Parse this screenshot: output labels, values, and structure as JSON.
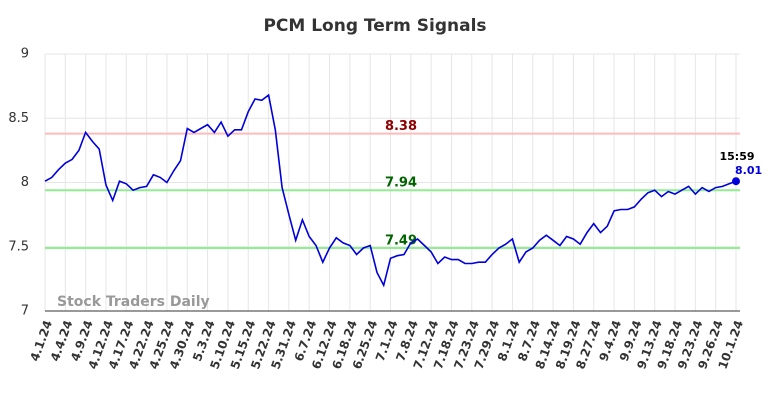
{
  "chart_data": {
    "type": "line",
    "title": "PCM Long Term Signals",
    "watermark": "Stock Traders Daily",
    "categories": [
      "4.1.24",
      null,
      null,
      "4.4.24",
      null,
      null,
      "4.9.24",
      null,
      null,
      "4.12.24",
      null,
      null,
      "4.17.24",
      null,
      null,
      "4.22.24",
      null,
      null,
      "4.25.24",
      null,
      null,
      "4.30.24",
      null,
      null,
      "5.3.24",
      null,
      null,
      "5.10.24",
      null,
      null,
      "5.15.24",
      null,
      null,
      "5.22.24",
      null,
      null,
      "5.31.24",
      null,
      null,
      "6.7.24",
      null,
      null,
      "6.12.24",
      null,
      null,
      "6.18.24",
      null,
      null,
      "6.25.24",
      null,
      null,
      "7.1.24",
      null,
      null,
      "7.8.24",
      null,
      null,
      "7.12.24",
      null,
      null,
      "7.18.24",
      null,
      null,
      "7.23.24",
      null,
      null,
      "7.29.24",
      null,
      null,
      "8.1.24",
      null,
      null,
      "8.7.24",
      null,
      null,
      "8.14.24",
      null,
      null,
      "8.19.24",
      null,
      null,
      "8.27.24",
      null,
      null,
      "9.4.24",
      null,
      null,
      "9.9.24",
      null,
      null,
      "9.13.24",
      null,
      null,
      "9.18.24",
      null,
      null,
      "9.23.24",
      null,
      null,
      "9.26.24",
      null,
      null,
      "10.1.24"
    ],
    "series": [
      {
        "name": "PCM",
        "color": "#0000dd",
        "values": [
          8.01,
          8.04,
          8.1,
          8.15,
          8.18,
          8.25,
          8.39,
          8.32,
          8.26,
          7.98,
          7.86,
          8.01,
          7.99,
          7.94,
          7.96,
          7.97,
          8.06,
          8.04,
          8.0,
          8.09,
          8.17,
          8.42,
          8.39,
          8.42,
          8.45,
          8.39,
          8.47,
          8.36,
          8.41,
          8.41,
          8.55,
          8.65,
          8.64,
          8.68,
          8.41,
          7.96,
          7.75,
          7.55,
          7.71,
          7.58,
          7.51,
          7.38,
          7.49,
          7.57,
          7.53,
          7.51,
          7.44,
          7.49,
          7.51,
          7.3,
          7.2,
          7.41,
          7.43,
          7.44,
          7.53,
          7.56,
          7.51,
          7.46,
          7.37,
          7.42,
          7.4,
          7.4,
          7.37,
          7.37,
          7.38,
          7.38,
          7.44,
          7.49,
          7.52,
          7.56,
          7.38,
          7.46,
          7.49,
          7.55,
          7.59,
          7.55,
          7.51,
          7.58,
          7.56,
          7.52,
          7.61,
          7.68,
          7.61,
          7.66,
          7.78,
          7.79,
          7.79,
          7.81,
          7.87,
          7.92,
          7.94,
          7.89,
          7.93,
          7.91,
          7.94,
          7.97,
          7.91,
          7.96,
          7.93,
          7.96,
          7.97,
          7.99,
          8.01
        ]
      }
    ],
    "last_time": "15:59",
    "hlines": [
      {
        "value": 8.38,
        "color": "#ffbbbb",
        "label_color": "#8b0000"
      },
      {
        "value": 7.94,
        "color": "#90ee90",
        "label_color": "#006400"
      },
      {
        "value": 7.49,
        "color": "#90ee90",
        "label_color": "#006400"
      }
    ],
    "ylim": [
      7,
      9
    ],
    "yticks": [
      7,
      7.5,
      8,
      8.5,
      9
    ],
    "grid": true
  }
}
